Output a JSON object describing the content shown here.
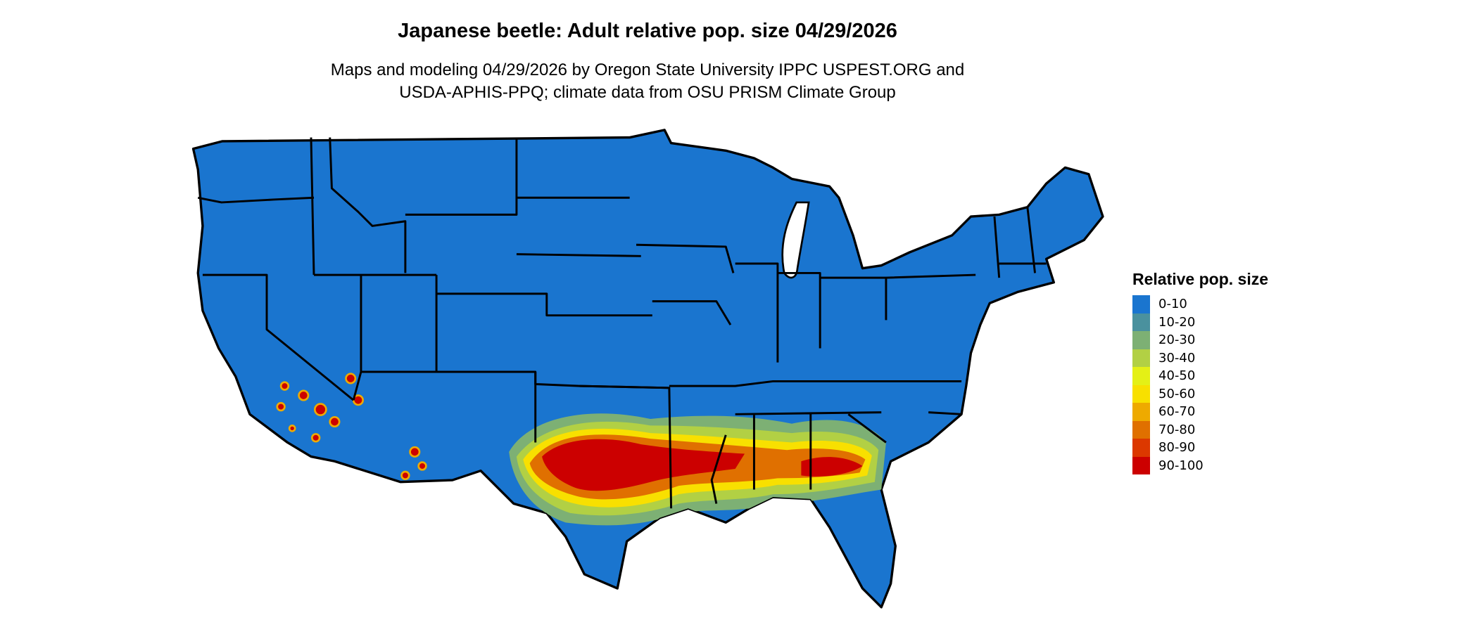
{
  "title": "Japanese beetle: Adult relative pop. size 04/29/2026",
  "subtitle_lines": [
    "Maps and modeling 04/29/2026 by Oregon State University IPPC USPEST.ORG and",
    "USDA-APHIS-PPQ; climate data from OSU PRISM Climate Group"
  ],
  "legend": {
    "title": "Relative pop. size",
    "items": [
      {
        "label": "0-10",
        "color": "#1a75cf"
      },
      {
        "label": "10-20",
        "color": "#4a919e"
      },
      {
        "label": "20-30",
        "color": "#7db074"
      },
      {
        "label": "30-40",
        "color": "#b2d044"
      },
      {
        "label": "40-50",
        "color": "#e4f016"
      },
      {
        "label": "50-60",
        "color": "#f8e000"
      },
      {
        "label": "60-70",
        "color": "#eeaa00"
      },
      {
        "label": "70-80",
        "color": "#e07000"
      },
      {
        "label": "80-90",
        "color": "#dc3800"
      },
      {
        "label": "90-100",
        "color": "#cc0000"
      }
    ]
  },
  "colors": {
    "base": "#1a75cf",
    "borders": "#000000",
    "water": "#ffffff"
  }
}
